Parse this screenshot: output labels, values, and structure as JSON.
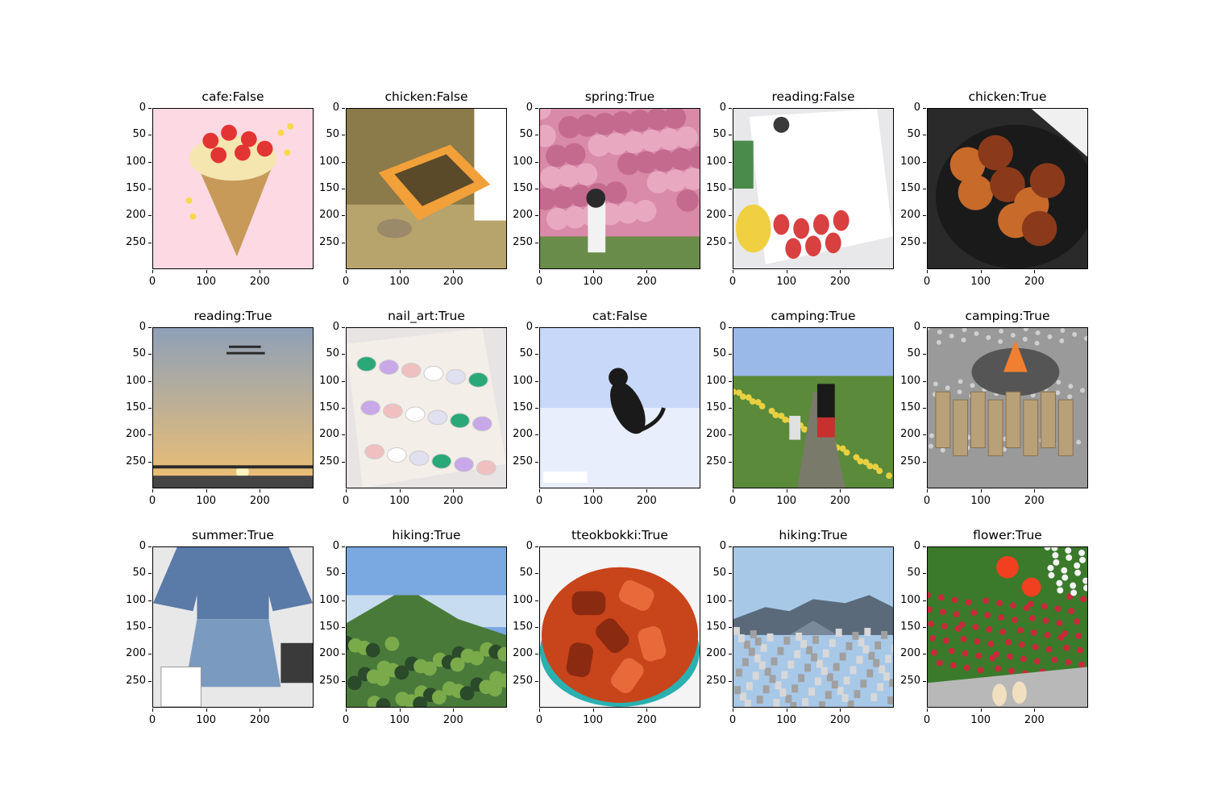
{
  "figure": {
    "panels": [
      {
        "title": "cafe:False",
        "icon": "crepe-illustration-image",
        "palette": [
          "#fdd9e3",
          "#c79a5a",
          "#e33434",
          "#f5e6b0",
          "#f7d94a"
        ]
      },
      {
        "title": "chicken:False",
        "icon": "chicken-box-outdoors-image",
        "palette": [
          "#8b7a4a",
          "#b7a36c",
          "#f2a03a",
          "#ffffff",
          "#5a4a2a"
        ]
      },
      {
        "title": "spring:True",
        "icon": "cherry-blossom-tree-image",
        "palette": [
          "#d88aa8",
          "#c46a8e",
          "#6a8c4a",
          "#f2f2f2",
          "#2a2a2a"
        ]
      },
      {
        "title": "reading:False",
        "icon": "book-strawberry-page-image",
        "palette": [
          "#e8e8ea",
          "#ffffff",
          "#d94040",
          "#4a8a4a",
          "#f0d040"
        ]
      },
      {
        "title": "chicken:True",
        "icon": "fried-chicken-bowl-image",
        "palette": [
          "#2a2a2a",
          "#8a3a1a",
          "#c86a2a",
          "#b05a1a",
          "#f0f0f0"
        ]
      },
      {
        "title": "reading:True",
        "icon": "sunset-sky-text-image",
        "palette": [
          "#8ea0b8",
          "#d8b88a",
          "#f0c070",
          "#2a2a2a",
          "#444444"
        ]
      },
      {
        "title": "nail_art:True",
        "icon": "nail-art-tips-image",
        "palette": [
          "#e8e4e4",
          "#f4eee8",
          "#2aa878",
          "#c8a8e8",
          "#f0c0c0"
        ]
      },
      {
        "title": "cat:False",
        "icon": "jumping-black-cat-image",
        "palette": [
          "#c8d8f8",
          "#e8eefc",
          "#1a1a1a",
          "#555555",
          "#ffffff"
        ]
      },
      {
        "title": "camping:True",
        "icon": "walking-path-family-image",
        "palette": [
          "#9ab8e8",
          "#5a8a3a",
          "#e8d040",
          "#c83030",
          "#7a7a6a"
        ]
      },
      {
        "title": "camping:True",
        "icon": "fire-pit-wood-image",
        "palette": [
          "#9a9a9a",
          "#b8a078",
          "#d0d0d0",
          "#f08030",
          "#555555"
        ]
      },
      {
        "title": "summer:True",
        "icon": "denim-outfit-mirror-image",
        "palette": [
          "#e8e8e8",
          "#5a7aa8",
          "#7a9ac0",
          "#ffffff",
          "#3a3a3a"
        ]
      },
      {
        "title": "hiking:True",
        "icon": "green-mountain-view-image",
        "palette": [
          "#7aa8e0",
          "#c8dcf0",
          "#4a7a3a",
          "#7aaa4a",
          "#2a4a2a"
        ]
      },
      {
        "title": "tteokbokki:True",
        "icon": "tteokbokki-dish-image",
        "palette": [
          "#c8441a",
          "#e86a3a",
          "#f4f4f4",
          "#2ab0b0",
          "#8a2a10"
        ]
      },
      {
        "title": "hiking:True",
        "icon": "city-skyline-mountain-image",
        "palette": [
          "#a8c8e8",
          "#7a8a9a",
          "#a0a0a0",
          "#d8d8d8",
          "#5a6a7a"
        ]
      },
      {
        "title": "flower:True",
        "icon": "flower-bed-feet-image",
        "palette": [
          "#3a7a2a",
          "#c82a3a",
          "#f04020",
          "#f4f4f4",
          "#b8b8b8"
        ]
      }
    ],
    "axes": {
      "y_ticks": [
        {
          "value": 0,
          "label": "0"
        },
        {
          "value": 50,
          "label": "50"
        },
        {
          "value": 100,
          "label": "100"
        },
        {
          "value": 150,
          "label": "150"
        },
        {
          "value": 200,
          "label": "200"
        },
        {
          "value": 250,
          "label": "250"
        }
      ],
      "x_ticks": [
        {
          "value": 0,
          "label": "0"
        },
        {
          "value": 100,
          "label": "100"
        },
        {
          "value": 200,
          "label": "200"
        }
      ],
      "extent": [
        0,
        300
      ]
    }
  }
}
